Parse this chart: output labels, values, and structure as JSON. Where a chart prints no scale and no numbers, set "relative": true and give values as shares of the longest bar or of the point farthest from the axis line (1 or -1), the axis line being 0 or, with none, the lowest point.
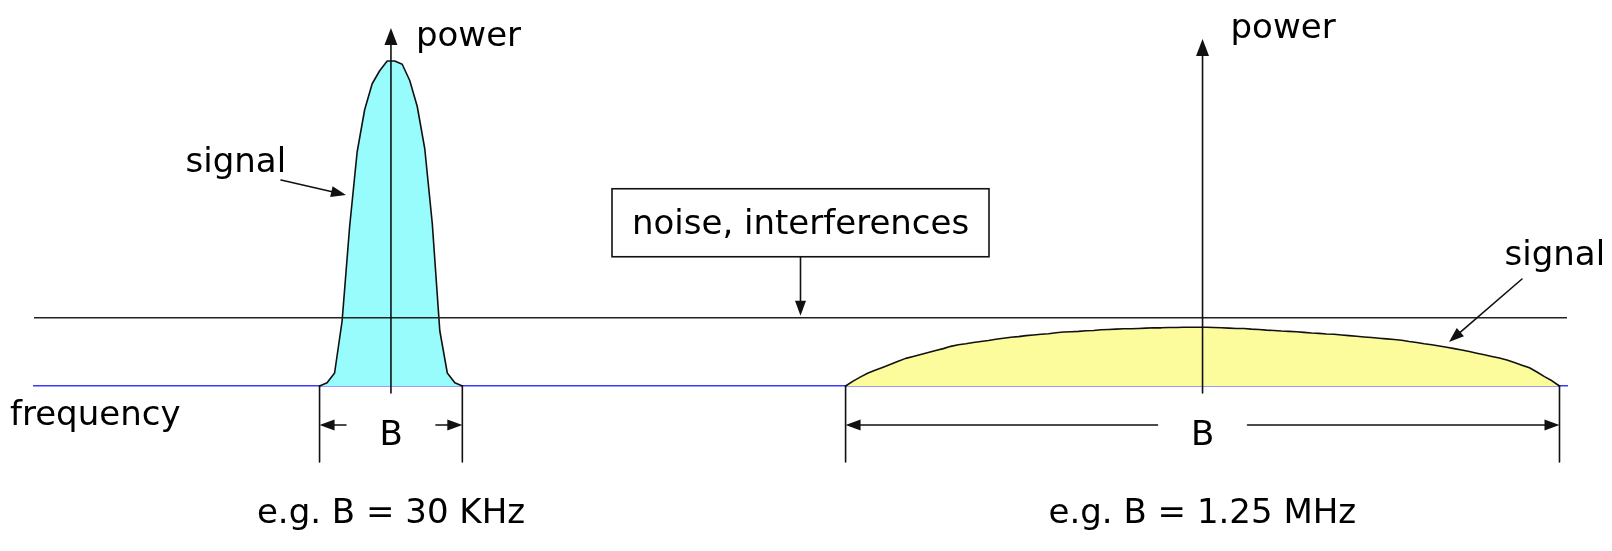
{
  "chart_data": {
    "type": "area",
    "relative": true,
    "xlabel": "frequency",
    "ylabel": "power",
    "categories": [
      null,
      null,
      null,
      null,
      null,
      null,
      null,
      null,
      null,
      null,
      null,
      null,
      null,
      null,
      null,
      null,
      null,
      null,
      null,
      null,
      null,
      null,
      null,
      null,
      null,
      null,
      null,
      null,
      null,
      null,
      null,
      null,
      null,
      null,
      null,
      null,
      null,
      null,
      null,
      null,
      null,
      null,
      null,
      null,
      null,
      null,
      null,
      null,
      null,
      null,
      null,
      null,
      null,
      null,
      null,
      null,
      null,
      null,
      null,
      null,
      null,
      null,
      null,
      null,
      null,
      null,
      null,
      null,
      null,
      null,
      null,
      null,
      null,
      null,
      null,
      null,
      null,
      null,
      null,
      null,
      null,
      null,
      null,
      null,
      null,
      null,
      null,
      null,
      null,
      null,
      null,
      null,
      null,
      null,
      null,
      null,
      null,
      null,
      null,
      null,
      null,
      null,
      null,
      null,
      null,
      null,
      null,
      null,
      null,
      null,
      null,
      null,
      null,
      null,
      null,
      null,
      null,
      null,
      null,
      null,
      null,
      null,
      null,
      null,
      null,
      null,
      null,
      null,
      null,
      null,
      null,
      null,
      null,
      null,
      null,
      null,
      null,
      null,
      null,
      null,
      null,
      null,
      null,
      null,
      null,
      null,
      null,
      null,
      null,
      null,
      null,
      null,
      null,
      null,
      null,
      null,
      null,
      null,
      null,
      null,
      null,
      null,
      null,
      null,
      null,
      null,
      null,
      null,
      null,
      null,
      null,
      null,
      null,
      null,
      null,
      null,
      null,
      null,
      null,
      null,
      null,
      null,
      null,
      null,
      null,
      null,
      null,
      null,
      null,
      null,
      null,
      null,
      null,
      null,
      null,
      null,
      null,
      null,
      null,
      null,
      null,
      null,
      null,
      null,
      null
    ],
    "series": [
      {
        "name": "signal",
        "color": "#99fcfc",
        "values": [
          null,
          null,
          null,
          null,
          null,
          null,
          null,
          null,
          null,
          null,
          null,
          null,
          null,
          null,
          null,
          null,
          null,
          null,
          null,
          null,
          null,
          null,
          null,
          null,
          null,
          null,
          null,
          null,
          null,
          null,
          null,
          null,
          null,
          null,
          null,
          null,
          null,
          null,
          0,
          0.01,
          0.04,
          0.2,
          0.49,
          0.72,
          0.85,
          0.93,
          0.97,
          1,
          1,
          0.99,
          0.94,
          0.86,
          0.73,
          0.5,
          0.17,
          0.04,
          0.01,
          0,
          null,
          null,
          null,
          null,
          null,
          null,
          null,
          null,
          null,
          null,
          null,
          null,
          null,
          null,
          null,
          null,
          null,
          null,
          null,
          null,
          null,
          null,
          null,
          null,
          null,
          null,
          null,
          null,
          null,
          null,
          null,
          null,
          null,
          null,
          null,
          null,
          null,
          null,
          null,
          null,
          null,
          null,
          null,
          null,
          null,
          null,
          null,
          null,
          null,
          null,
          null,
          null,
          null,
          null,
          null,
          null,
          null,
          null,
          null,
          null,
          null,
          null,
          null,
          null,
          null,
          null,
          null,
          null,
          null,
          null,
          null,
          null,
          null,
          null,
          null,
          null,
          null,
          null,
          null,
          null,
          null,
          null,
          null,
          null,
          null,
          null,
          null,
          null,
          null,
          null,
          null,
          null,
          null,
          null,
          null,
          null,
          null,
          null,
          null,
          null,
          null,
          null,
          null,
          null,
          null,
          null,
          null,
          null,
          null,
          null,
          null,
          null,
          null,
          null,
          null,
          null,
          null,
          null,
          null,
          null,
          null,
          null,
          null,
          null,
          null,
          null,
          null,
          null,
          null,
          null,
          null,
          null,
          null,
          null,
          null,
          null,
          null,
          null,
          null,
          null,
          null,
          null,
          null,
          null,
          null,
          null,
          null
        ]
      },
      {
        "name": "signal",
        "color": "#fcfc9c",
        "values": [
          null,
          null,
          null,
          null,
          null,
          null,
          null,
          null,
          null,
          null,
          null,
          null,
          null,
          null,
          null,
          null,
          null,
          null,
          null,
          null,
          null,
          null,
          null,
          null,
          null,
          null,
          null,
          null,
          null,
          null,
          null,
          null,
          null,
          null,
          null,
          null,
          null,
          null,
          null,
          null,
          null,
          null,
          null,
          null,
          null,
          null,
          null,
          null,
          null,
          null,
          null,
          null,
          null,
          null,
          null,
          null,
          null,
          null,
          null,
          null,
          null,
          null,
          null,
          null,
          null,
          null,
          null,
          null,
          null,
          null,
          null,
          null,
          null,
          null,
          null,
          null,
          null,
          null,
          null,
          null,
          null,
          null,
          null,
          null,
          null,
          null,
          null,
          null,
          null,
          null,
          null,
          null,
          null,
          null,
          null,
          null,
          null,
          null,
          null,
          null,
          null,
          null,
          null,
          null,
          null,
          null,
          null,
          null,
          0,
          0.015,
          0.028,
          0.04,
          0.049,
          0.058,
          0.067,
          0.076,
          0.085,
          0.091,
          0.097,
          0.103,
          0.109,
          0.115,
          0.122,
          0.127,
          0.13,
          0.134,
          0.137,
          0.14,
          0.144,
          0.147,
          0.15,
          0.152,
          0.155,
          0.157,
          0.159,
          0.161,
          0.164,
          0.166,
          0.167,
          0.168,
          0.17,
          0.171,
          0.173,
          0.174,
          0.175,
          0.176,
          0.176,
          0.177,
          0.178,
          0.179,
          0.179,
          0.18,
          0.18,
          0.181,
          0.181,
          0.181,
          0.181,
          0.18,
          0.179,
          0.178,
          0.177,
          0.177,
          0.175,
          0.174,
          0.172,
          0.171,
          0.169,
          0.168,
          0.167,
          0.165,
          0.163,
          0.162,
          0.16,
          0.159,
          0.157,
          0.155,
          0.153,
          0.151,
          0.149,
          0.147,
          0.145,
          0.143,
          0.141,
          0.137,
          0.134,
          0.13,
          0.127,
          0.123,
          0.119,
          0.115,
          0.111,
          0.106,
          0.101,
          0.096,
          0.091,
          0.086,
          0.08,
          0.072,
          0.064,
          0.056,
          0.043,
          0.029,
          0.016,
          0,
          null
        ]
      }
    ],
    "ref_lines": [
      {
        "axis": "y",
        "value": 0.21,
        "label": "noise, interferences"
      }
    ],
    "annotations": [
      "B",
      "e.g. B = 30 KHz",
      "B",
      "e.g. B = 1.25 MHz"
    ]
  }
}
